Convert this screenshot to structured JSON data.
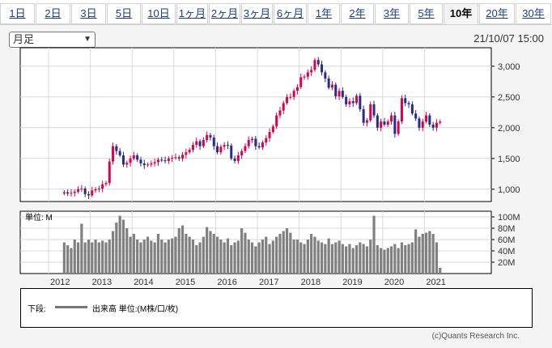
{
  "tabs": [
    "1日",
    "2日",
    "3日",
    "5日",
    "10日",
    "1ヶ月",
    "2ヶ月",
    "3ヶ月",
    "6ヶ月",
    "1年",
    "2年",
    "3年",
    "5年",
    "10年",
    "20年",
    "30年"
  ],
  "active_tab": "10年",
  "period_select": {
    "value": "月足"
  },
  "timestamp": "21/10/07 15:00",
  "volume_unit_label": "単位: M",
  "legend": {
    "lower_label": "下段:",
    "text": "出来高 単位:(M株/口/枚)"
  },
  "copyright": "(c)Quants Research Inc.",
  "colors": {
    "up": "#e0004a",
    "down": "#2a2a8a",
    "volume": "#808080",
    "grid": "#d8d8d8"
  },
  "chart_data": {
    "type": "candlestick",
    "interval": "monthly",
    "x_labels": [
      "2012",
      "2013",
      "2014",
      "2015",
      "2016",
      "2017",
      "2018",
      "2019",
      "2020",
      "2021"
    ],
    "price_axis": {
      "ticks": [
        "3,000",
        "2,500",
        "2,000",
        "1,500",
        "1,000"
      ],
      "range": [
        800,
        3300
      ]
    },
    "volume_axis": {
      "ticks": [
        "100M",
        "80M",
        "60M",
        "40M",
        "20M"
      ],
      "range": [
        0,
        110
      ]
    },
    "start": "2012-05",
    "close": [
      950,
      930,
      940,
      960,
      1000,
      1010,
      920,
      900,
      980,
      1000,
      1010,
      1080,
      1100,
      1450,
      1700,
      1620,
      1550,
      1400,
      1430,
      1500,
      1550,
      1480,
      1420,
      1390,
      1400,
      1420,
      1440,
      1480,
      1470,
      1460,
      1500,
      1510,
      1520,
      1500,
      1560,
      1600,
      1640,
      1720,
      1780,
      1700,
      1800,
      1880,
      1840,
      1700,
      1600,
      1690,
      1720,
      1710,
      1500,
      1460,
      1550,
      1620,
      1700,
      1800,
      1820,
      1700,
      1680,
      1760,
      1830,
      1930,
      2020,
      2200,
      2280,
      2400,
      2500,
      2500,
      2600,
      2660,
      2820,
      2830,
      2900,
      2940,
      3100,
      3030,
      2900,
      2800,
      2650,
      2700,
      2510,
      2600,
      2500,
      2380,
      2430,
      2400,
      2520,
      2300,
      2080,
      2120,
      2380,
      2200,
      2000,
      2100,
      2050,
      2100,
      2200,
      1900,
      2100,
      2480,
      2400,
      2380,
      2230,
      2150,
      2000,
      2100,
      2200,
      2050,
      2000,
      2080,
      2100
    ],
    "volume": [
      55,
      50,
      45,
      60,
      55,
      88,
      55,
      60,
      55,
      60,
      55,
      58,
      55,
      60,
      75,
      90,
      102,
      95,
      80,
      65,
      70,
      60,
      55,
      60,
      65,
      58,
      55,
      70,
      60,
      55,
      60,
      62,
      65,
      80,
      85,
      70,
      65,
      60,
      50,
      55,
      65,
      82,
      75,
      70,
      65,
      60,
      55,
      62,
      50,
      55,
      58,
      80,
      72,
      60,
      55,
      48,
      55,
      60,
      65,
      52,
      58,
      65,
      70,
      75,
      80,
      72,
      60,
      60,
      55,
      52,
      60,
      70,
      65,
      58,
      55,
      52,
      62,
      52,
      55,
      58,
      52,
      48,
      52,
      45,
      50,
      55,
      52,
      48,
      60,
      102,
      50,
      45,
      42,
      45,
      48,
      52,
      45,
      55,
      50,
      52,
      55,
      78,
      65,
      70,
      72,
      75,
      70,
      55,
      10
    ]
  }
}
